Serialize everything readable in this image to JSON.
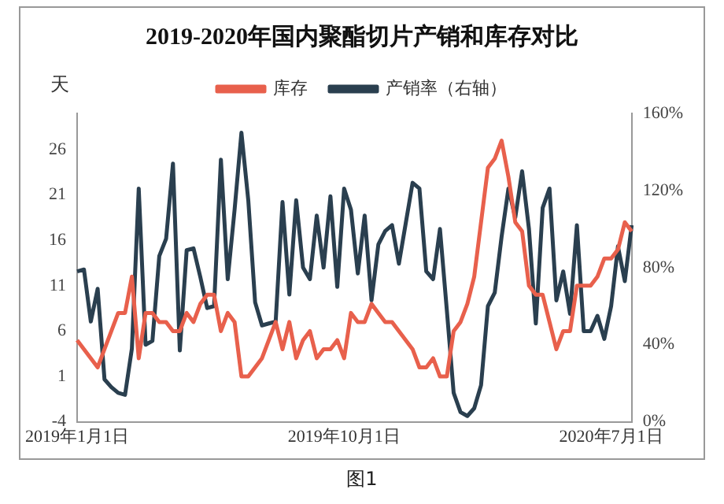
{
  "chart_data": {
    "type": "line",
    "title": "2019-2020年国内聚酯切片产销和库存对比",
    "ylabel": "天",
    "annotations": [
      "图1"
    ],
    "categories": [
      "2019年1月1日",
      null,
      null,
      null,
      null,
      null,
      null,
      null,
      null,
      null,
      null,
      null,
      null,
      null,
      null,
      null,
      null,
      null,
      null,
      null,
      null,
      null,
      null,
      null,
      null,
      null,
      null,
      null,
      null,
      null,
      null,
      null,
      null,
      null,
      null,
      null,
      null,
      null,
      null,
      "2019年10月1日",
      null,
      null,
      null,
      null,
      null,
      null,
      null,
      null,
      null,
      null,
      null,
      null,
      null,
      null,
      null,
      null,
      null,
      null,
      null,
      null,
      null,
      null,
      null,
      null,
      null,
      null,
      null,
      null,
      null,
      null,
      null,
      null,
      null,
      null,
      null,
      null,
      null,
      null,
      "2020年7月1日",
      null,
      null,
      null
    ],
    "series": [
      {
        "name": "库存",
        "color": "#e8604c",
        "values": [
          5,
          4,
          3,
          2,
          4,
          6,
          8,
          8,
          12,
          3,
          8,
          8,
          7,
          7,
          6,
          6,
          8,
          7,
          9,
          10,
          10,
          6,
          8,
          7,
          1,
          1,
          2,
          3,
          5,
          7,
          4,
          7,
          3,
          5,
          6,
          3,
          4,
          4,
          5,
          3,
          8,
          7,
          7,
          9,
          8,
          7,
          7,
          6,
          5,
          4,
          2,
          2,
          3,
          1,
          1,
          6,
          7,
          9,
          12,
          18,
          24,
          25,
          27,
          23,
          18,
          17,
          11,
          10,
          10,
          7,
          4,
          6,
          6,
          11,
          11,
          11,
          12,
          14,
          14,
          15,
          18,
          17
        ]
      },
      {
        "name": "产销率（右轴）",
        "color": "#2a3f4f",
        "axis": "y2",
        "values": [
          78,
          79,
          52,
          69,
          22,
          18,
          15,
          14,
          38,
          121,
          40,
          42,
          86,
          95,
          134,
          37,
          89,
          90,
          75,
          59,
          60,
          136,
          74,
          110,
          150,
          115,
          62,
          50,
          51,
          52,
          114,
          66,
          115,
          80,
          74,
          107,
          80,
          117,
          70,
          121,
          110,
          77,
          107,
          63,
          92,
          99,
          102,
          82,
          103,
          124,
          121,
          78,
          74,
          100,
          58,
          15,
          5,
          3,
          7,
          19,
          60,
          67,
          96,
          121,
          106,
          130,
          100,
          51,
          111,
          121,
          63,
          78,
          56,
          102,
          47,
          47,
          55,
          43,
          60,
          91,
          73,
          102
        ]
      }
    ],
    "ylim": [
      -4,
      30
    ],
    "yticks": [
      -4,
      1,
      6,
      11,
      16,
      21,
      26
    ],
    "y2lim": [
      0,
      160
    ],
    "y2ticks": [
      {
        "value": 0,
        "label": "0%"
      },
      {
        "value": 40,
        "label": "40%"
      },
      {
        "value": 80,
        "label": "80%"
      },
      {
        "value": 120,
        "label": "120%"
      },
      {
        "value": 160,
        "label": "160%"
      }
    ],
    "legend": "top",
    "grid": false,
    "marker": "none",
    "line_style": "solid"
  }
}
